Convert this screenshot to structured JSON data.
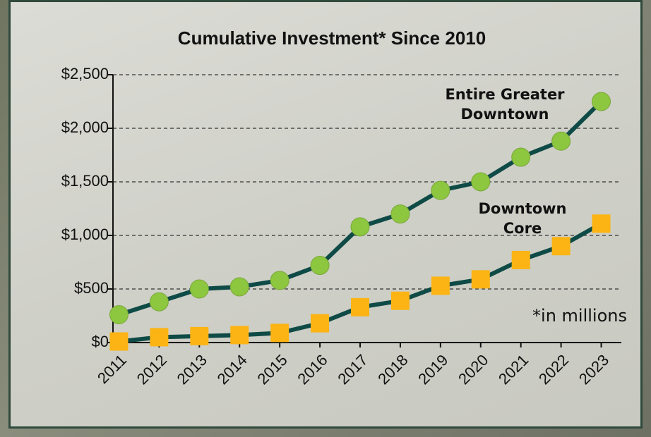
{
  "chart_data": {
    "type": "line",
    "title": "Cumulative Investment* Since 2010",
    "note": "*in millions",
    "categories": [
      "2011",
      "2012",
      "2013",
      "2014",
      "2015",
      "2016",
      "2017",
      "2018",
      "2019",
      "2020",
      "2021",
      "2022",
      "2023"
    ],
    "series": [
      {
        "name": "Entire Greater Downtown",
        "color": "#8dc63f",
        "marker": "circle",
        "line_color": "#0f4b46",
        "values": [
          260,
          380,
          500,
          520,
          580,
          720,
          1080,
          1200,
          1420,
          1500,
          1730,
          1880,
          2250
        ]
      },
      {
        "name": "Downtown Core",
        "color": "#fbb414",
        "marker": "square",
        "line_color": "#0f4b46",
        "values": [
          10,
          50,
          60,
          70,
          90,
          180,
          330,
          390,
          530,
          590,
          770,
          900,
          1110
        ]
      }
    ],
    "ylim": [
      0,
      2500
    ],
    "yticks": [
      {
        "value": 0,
        "label": "$0"
      },
      {
        "value": 500,
        "label": "$500"
      },
      {
        "value": 1000,
        "label": "$1,000"
      },
      {
        "value": 1500,
        "label": "$1,500"
      },
      {
        "value": 2000,
        "label": "$2,000"
      },
      {
        "value": 2500,
        "label": "$2,500"
      }
    ],
    "grid": true
  }
}
